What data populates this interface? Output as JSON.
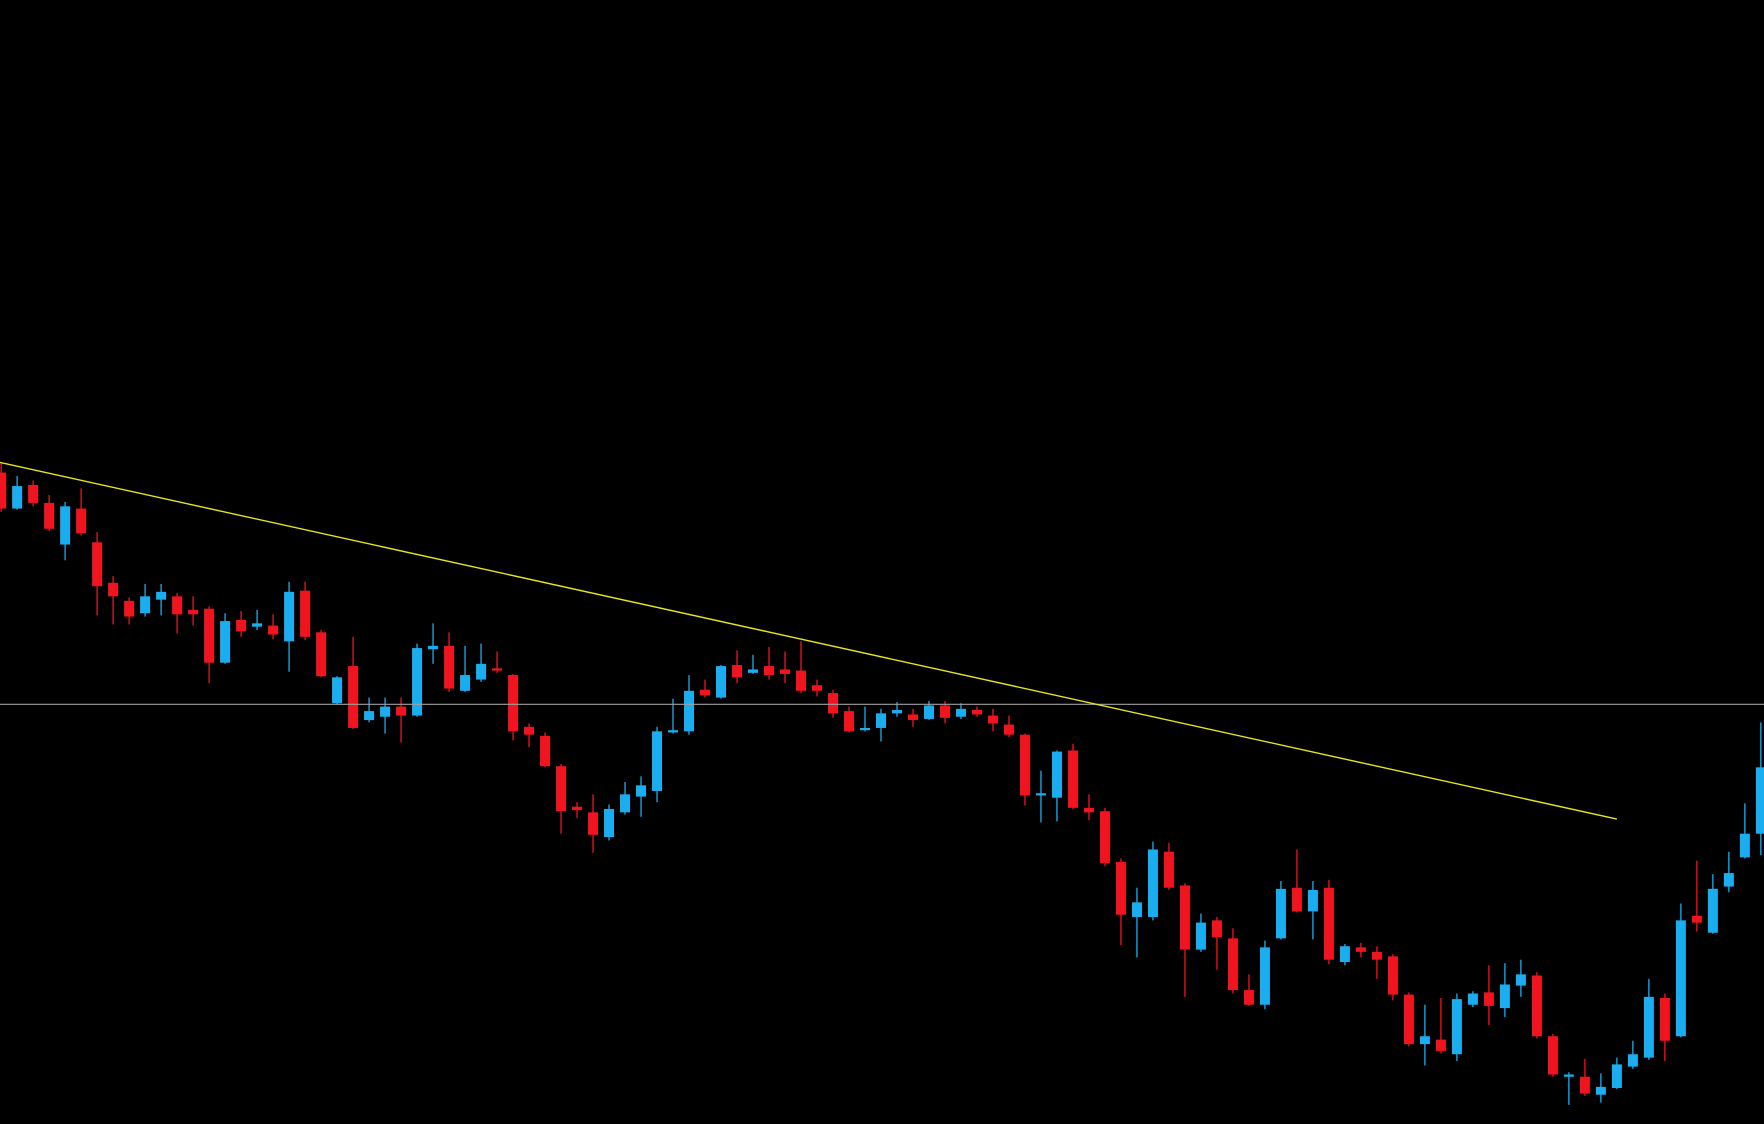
{
  "chart_data": {
    "type": "candlestick",
    "ylim": [
      0,
      999
    ],
    "up_color": "#1aaef0",
    "down_color": "#f0141e",
    "open": [
      579,
      547,
      568,
      552,
      515,
      547,
      517,
      481,
      465,
      454,
      466,
      469,
      457,
      458,
      410,
      448,
      442,
      443,
      429,
      474,
      437,
      374,
      407,
      359,
      362,
      371,
      363,
      422,
      425,
      385,
      395,
      405,
      399,
      353,
      345,
      318,
      282,
      277,
      255,
      277,
      291,
      296,
      348,
      349,
      386,
      379,
      408,
      401,
      407,
      404,
      403,
      390,
      383,
      367,
      350,
      352,
      365,
      364,
      360,
      372,
      362,
      368,
      363,
      355,
      346,
      292,
      290,
      332,
      281,
      278,
      233,
      184,
      184,
      242,
      212,
      155,
      181,
      165,
      119,
      106,
      165,
      210,
      189,
      210,
      144,
      157,
      153,
      149,
      115,
      71,
      75,
      62,
      106,
      117,
      103,
      123,
      132,
      78,
      42,
      42,
      26,
      32,
      51,
      59,
      112,
      78,
      185,
      170,
      211,
      237,
      258
    ],
    "high": [
      587,
      576,
      572,
      559,
      553,
      565,
      526,
      487,
      468,
      480,
      480,
      472,
      469,
      460,
      454,
      456,
      457,
      453,
      482,
      482,
      439,
      398,
      433,
      379,
      379,
      379,
      427,
      445,
      437,
      425,
      427,
      420,
      400,
      356,
      348,
      320,
      286,
      293,
      284,
      304,
      309,
      353,
      378,
      399,
      395,
      408,
      421,
      417,
      424,
      420,
      429,
      395,
      386,
      371,
      371,
      369,
      375,
      369,
      376,
      376,
      374,
      371,
      369,
      363,
      347,
      314,
      332,
      338,
      293,
      281,
      236,
      210,
      251,
      250,
      214,
      187,
      184,
      174,
      133,
      163,
      216,
      244,
      216,
      217,
      160,
      161,
      158,
      151,
      117,
      106,
      112,
      116,
      118,
      141,
      143,
      146,
      135,
      80,
      46,
      58,
      45,
      59,
      74,
      129,
      116,
      196,
      234,
      222,
      242,
      285,
      357
    ],
    "low": [
      544,
      546,
      549,
      527,
      501,
      523,
      452,
      444,
      444,
      451,
      452,
      436,
      443,
      392,
      409,
      433,
      439,
      431,
      402,
      430,
      397,
      373,
      351,
      357,
      347,
      339,
      362,
      409,
      384,
      384,
      393,
      401,
      341,
      335,
      317,
      258,
      272,
      241,
      252,
      275,
      273,
      286,
      347,
      346,
      379,
      378,
      392,
      400,
      395,
      392,
      383,
      380,
      361,
      348,
      349,
      340,
      362,
      353,
      359,
      356,
      360,
      362,
      349,
      344,
      283,
      268,
      269,
      280,
      270,
      229,
      159,
      148,
      181,
      208,
      113,
      153,
      137,
      116,
      105,
      102,
      164,
      188,
      164,
      142,
      141,
      148,
      129,
      110,
      69,
      52,
      63,
      56,
      104,
      88,
      95,
      113,
      76,
      42,
      17,
      25,
      19,
      31,
      49,
      57,
      56,
      77,
      171,
      169,
      206,
      236,
      239
    ],
    "close": [
      547,
      567,
      552,
      529,
      549,
      525,
      478,
      469,
      451,
      469,
      473,
      453,
      453,
      410,
      447,
      438,
      445,
      435,
      473,
      433,
      398,
      397,
      352,
      367,
      371,
      363,
      423,
      425,
      387,
      399,
      409,
      403,
      349,
      346,
      318,
      278,
      279,
      257,
      280,
      293,
      301,
      349,
      350,
      385,
      381,
      407,
      397,
      404,
      399,
      400,
      385,
      385,
      365,
      349,
      352,
      365,
      368,
      359,
      372,
      361,
      369,
      364,
      356,
      346,
      292,
      294,
      331,
      281,
      277,
      232,
      186,
      197,
      244,
      210,
      155,
      179,
      166,
      119,
      106,
      157,
      209,
      189,
      208,
      146,
      158,
      153,
      146,
      115,
      71,
      78,
      65,
      111,
      116,
      105,
      124,
      133,
      78,
      44,
      44,
      27,
      33,
      53,
      62,
      113,
      74,
      181,
      179,
      209,
      223,
      258,
      317
    ],
    "hline": 373,
    "hline_color": "#a0a0a0",
    "trendline": {
      "x": [
        0,
        101
      ],
      "y": [
        588,
        271
      ],
      "color": "#e6e61e"
    }
  }
}
